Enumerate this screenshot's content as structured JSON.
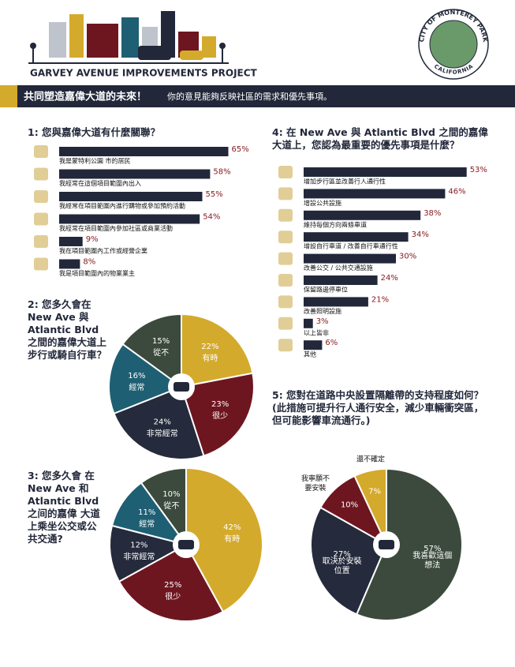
{
  "header": {
    "project": "GARVEY AVENUE IMPROVEMENTS PROJECT",
    "seal_top": "CITY OF MONTEREY PARK",
    "seal_bottom": "CALIFORNIA",
    "banner_title": "共同塑造嘉偉大道的未來！",
    "banner_text": "你的意見能夠反映社區的需求和優先事項。"
  },
  "chart_data": [
    {
      "type": "bar",
      "orientation": "horizontal",
      "title": "1: 您與嘉偉大道有什麼關聯？",
      "categories": [
        "我是蒙特利公園 市的居民",
        "我經常在這個項目範圍內出入",
        "我經常在項目範圍內進行購物或參加預約活動",
        "我經常在項目範圍內參加社區或商業活動",
        "我在項目範圍內工作或經營企業",
        "我是項目範圍內的物業業主"
      ],
      "values": [
        65,
        58,
        55,
        54,
        9,
        8
      ],
      "value_labels": [
        "65%",
        "58%",
        "55%",
        "54%",
        "9%",
        "8%"
      ],
      "color": "#22283a",
      "label_color": "#8a1c24"
    },
    {
      "type": "pie",
      "title": "2: 您多久會在 New Ave 與 Atlantic Blvd 之間的嘉偉大道上步行或騎自行車？",
      "categories": [
        "有時",
        "很少",
        "非常經常",
        "經常",
        "從不"
      ],
      "values": [
        22,
        23,
        24,
        16,
        15
      ],
      "value_labels": [
        "22%",
        "23%",
        "24%",
        "16%",
        "15%"
      ],
      "colors": [
        "#d4aa2c",
        "#6e1620",
        "#252a3c",
        "#1f5f73",
        "#3b4a3c"
      ]
    },
    {
      "type": "pie",
      "title": "3: 您多久會 在 New Ave 和 Atlantic Blvd 之间的嘉偉 大道上乘坐公交或公共交通?",
      "categories": [
        "有時",
        "很少",
        "非常經常",
        "經常",
        "從不"
      ],
      "values": [
        42,
        25,
        12,
        11,
        10
      ],
      "value_labels": [
        "42%",
        "25%",
        "12%",
        "11%",
        "10%"
      ],
      "colors": [
        "#d4aa2c",
        "#6e1620",
        "#252a3c",
        "#1f5f73",
        "#3b4a3c"
      ]
    },
    {
      "type": "bar",
      "orientation": "horizontal",
      "title": "4: 在 New Ave 與 Atlantic Blvd 之間的嘉偉大道上，您認為最重要的優先事項是什麼？",
      "categories": [
        "增加步行區並改善行人通行性",
        "增設公共設施",
        "維持每個方向兩條車道",
        "增設自行車道 / 改善自行車通行性",
        "改善公交 / 公共交通設施",
        "保留路邊停車位",
        "改善照明設施",
        "以上皆非",
        "其他"
      ],
      "values": [
        53,
        46,
        38,
        34,
        30,
        24,
        21,
        3,
        6
      ],
      "value_labels": [
        "53%",
        "46%",
        "38%",
        "34%",
        "30%",
        "24%",
        "21%",
        "3%",
        "6%"
      ],
      "color": "#22283a",
      "label_color": "#8a1c24"
    },
    {
      "type": "pie",
      "title": "5: 您對在道路中央設置隔離帶的支持程度如何？(此措施可提升行人通行安全，減少車輛衝突區，但可能影響車流通行。)",
      "categories": [
        "我喜歡這個想法",
        "取決於安裝位置",
        "我寧願不要安裝",
        "還不確定"
      ],
      "values": [
        57,
        27,
        10,
        7
      ],
      "value_labels": [
        "57%",
        "27%",
        "10%",
        "7%"
      ],
      "colors": [
        "#3b4a3c",
        "#252a3c",
        "#6e1620",
        "#d4aa2c"
      ]
    }
  ]
}
